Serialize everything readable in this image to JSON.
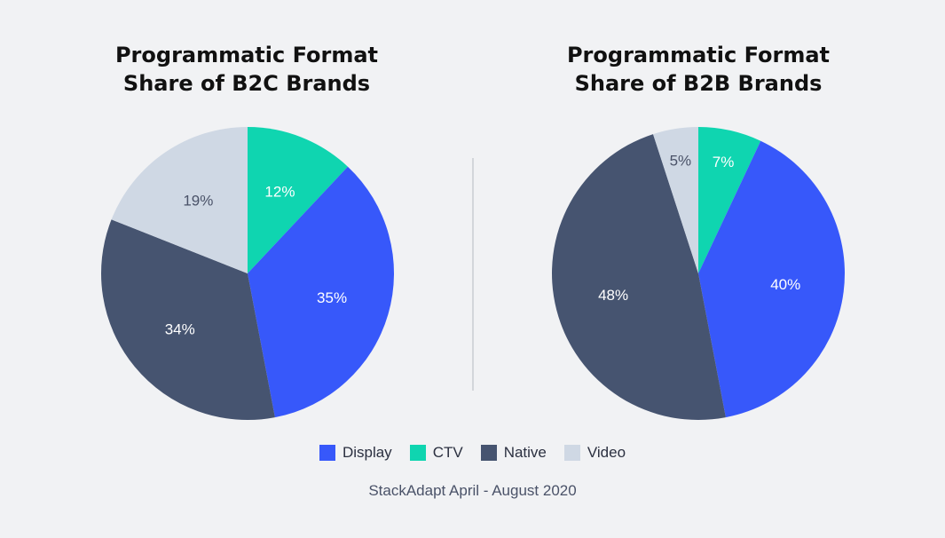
{
  "colors": {
    "Display": "#3758fa",
    "CTV": "#0fd5b0",
    "Native": "#465470",
    "Video": "#cfd8e4",
    "divider": "#c9ccd2"
  },
  "chart_data": [
    {
      "type": "pie",
      "title_lines": [
        "Programmatic Format",
        "Share of B2C Brands"
      ],
      "slices": [
        {
          "category": "CTV",
          "value": 12,
          "label": "12%"
        },
        {
          "category": "Display",
          "value": 35,
          "label": "35%"
        },
        {
          "category": "Native",
          "value": 34,
          "label": "34%"
        },
        {
          "category": "Video",
          "value": 19,
          "label": "19%"
        }
      ]
    },
    {
      "type": "pie",
      "title_lines": [
        "Programmatic Format",
        "Share of B2B Brands"
      ],
      "slices": [
        {
          "category": "CTV",
          "value": 7,
          "label": "7%"
        },
        {
          "category": "Display",
          "value": 40,
          "label": "40%"
        },
        {
          "category": "Native",
          "value": 48,
          "label": "48%"
        },
        {
          "category": "Video",
          "value": 5,
          "label": "5%"
        }
      ]
    }
  ],
  "legend": [
    {
      "label": "Display"
    },
    {
      "label": "CTV"
    },
    {
      "label": "Native"
    },
    {
      "label": "Video"
    }
  ],
  "source": "StackAdapt April - August 2020"
}
